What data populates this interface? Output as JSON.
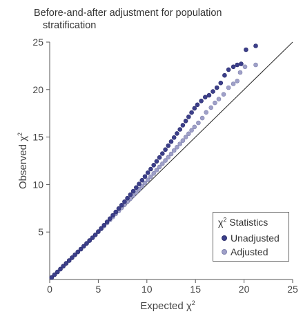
{
  "chart_data": {
    "type": "scatter",
    "title_line1": "Before-and-after adjustment for population",
    "title_line2": "stratification",
    "xlabel": "Expected χ",
    "ylabel": "Observed χ",
    "label_superscript": "2",
    "xlim": [
      0,
      25
    ],
    "ylim": [
      0,
      25
    ],
    "x_ticks": [
      0,
      5,
      10,
      15,
      20,
      25
    ],
    "y_ticks": [
      5,
      10,
      15,
      20,
      25
    ],
    "reference_line": {
      "x": [
        0,
        25
      ],
      "y": [
        0,
        25
      ]
    },
    "legend": {
      "title": "χ",
      "title_rest": " Statistics",
      "placement": "bottom-right"
    },
    "series": [
      {
        "name": "Unadjusted",
        "color": "#3c3f8a",
        "x": [
          0.2,
          0.5,
          0.8,
          1.1,
          1.4,
          1.7,
          2.0,
          2.3,
          2.6,
          2.9,
          3.2,
          3.5,
          3.8,
          4.1,
          4.4,
          4.7,
          5.0,
          5.3,
          5.6,
          5.9,
          6.2,
          6.5,
          6.8,
          7.1,
          7.4,
          7.7,
          8.0,
          8.3,
          8.6,
          8.9,
          9.2,
          9.5,
          9.8,
          10.1,
          10.4,
          10.7,
          11.0,
          11.3,
          11.6,
          11.9,
          12.2,
          12.5,
          12.8,
          13.1,
          13.4,
          13.7,
          14.0,
          14.3,
          14.6,
          14.9,
          15.2,
          15.6,
          16.0,
          16.4,
          16.8,
          17.2,
          17.6,
          18.0,
          18.4,
          18.9,
          19.3,
          19.7,
          20.2,
          21.2
        ],
        "y": [
          0.2,
          0.5,
          0.8,
          1.1,
          1.4,
          1.7,
          2.0,
          2.3,
          2.6,
          2.9,
          3.2,
          3.5,
          3.8,
          4.1,
          4.4,
          4.7,
          5.05,
          5.38,
          5.72,
          6.06,
          6.41,
          6.76,
          7.11,
          7.47,
          7.83,
          8.19,
          8.56,
          8.93,
          9.3,
          9.68,
          10.06,
          10.45,
          10.84,
          11.24,
          11.63,
          12.04,
          12.44,
          12.85,
          13.26,
          13.68,
          14.1,
          14.52,
          14.95,
          15.38,
          15.81,
          16.25,
          16.69,
          17.13,
          17.58,
          18.03,
          18.4,
          18.8,
          19.2,
          19.4,
          19.8,
          20.2,
          20.7,
          21.5,
          22.1,
          22.4,
          22.6,
          22.7,
          24.2,
          24.6
        ]
      },
      {
        "name": "Adjusted",
        "color": "#9fa0c8",
        "x": [
          0.2,
          0.5,
          0.8,
          1.1,
          1.4,
          1.7,
          2.0,
          2.3,
          2.6,
          2.9,
          3.2,
          3.5,
          3.8,
          4.1,
          4.4,
          4.7,
          5.0,
          5.3,
          5.6,
          5.9,
          6.2,
          6.5,
          6.8,
          7.1,
          7.4,
          7.7,
          8.0,
          8.3,
          8.6,
          8.9,
          9.2,
          9.5,
          9.8,
          10.1,
          10.4,
          10.7,
          11.0,
          11.3,
          11.6,
          11.9,
          12.2,
          12.5,
          12.8,
          13.1,
          13.4,
          13.7,
          14.0,
          14.3,
          14.6,
          14.9,
          15.3,
          15.7,
          16.1,
          16.6,
          17.0,
          17.4,
          17.9,
          18.4,
          18.9,
          19.3,
          19.6,
          20.1,
          21.2
        ],
        "y": [
          0.2,
          0.5,
          0.8,
          1.1,
          1.4,
          1.7,
          2.0,
          2.3,
          2.6,
          2.9,
          3.2,
          3.5,
          3.8,
          4.1,
          4.4,
          4.7,
          5.02,
          5.33,
          5.64,
          5.96,
          6.27,
          6.59,
          6.91,
          7.22,
          7.54,
          7.87,
          8.19,
          8.51,
          8.84,
          9.17,
          9.5,
          9.83,
          10.16,
          10.49,
          10.83,
          11.17,
          11.51,
          11.85,
          12.19,
          12.53,
          12.88,
          13.23,
          13.58,
          13.93,
          14.28,
          14.63,
          14.99,
          15.35,
          15.71,
          16.07,
          16.5,
          17.0,
          17.6,
          18.1,
          18.6,
          19.0,
          19.5,
          20.2,
          20.6,
          20.9,
          21.8,
          22.4,
          22.6
        ]
      }
    ]
  }
}
